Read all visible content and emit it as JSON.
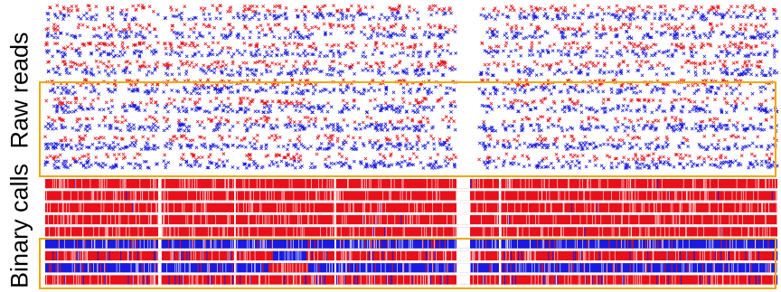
{
  "labels": {
    "raw_reads": "Raw reads",
    "binary_calls": "Binary calls"
  },
  "colors": {
    "allele_a": "#e8101a",
    "allele_b": "#1a1ae0",
    "highlight_box": "#f0a800",
    "gap": "#ffffff"
  },
  "panels": {
    "raw_reads": {
      "tracks": 9,
      "highlighted_tracks": [
        5,
        6,
        7,
        8
      ]
    },
    "binary_calls": {
      "tracks": 9,
      "highlighted_tracks": [
        5,
        6,
        7,
        8
      ]
    }
  }
}
